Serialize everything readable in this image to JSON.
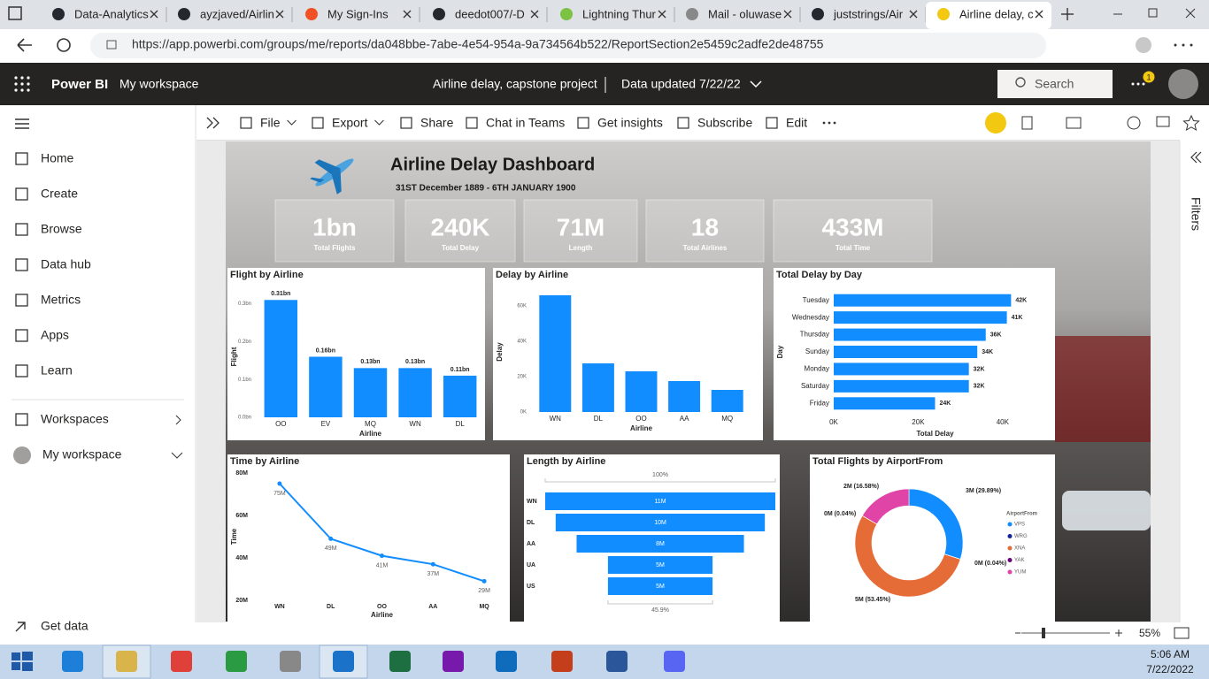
{
  "browser": {
    "tabs": [
      "Data-Analytics",
      "ayzjaved/Airlin",
      "My Sign-Ins",
      "deedot007/-D",
      "Lightning Thur",
      "Mail - oluwase",
      "juststrings/Air",
      "Airline delay, c"
    ],
    "url": "https://app.powerbi.com/groups/me/reports/da048bbe-7abe-4e54-954a-9a734564b522/ReportSection2e5459c2adfe2de48755"
  },
  "app": {
    "brand": "Power BI",
    "workspace": "My workspace",
    "report": "Airline delay, capstone project",
    "updated": "Data updated 7/22/22",
    "search": "Search",
    "notifications": "1"
  },
  "nav": [
    "Home",
    "Create",
    "Browse",
    "Data hub",
    "Metrics",
    "Apps",
    "Learn",
    "Workspaces",
    "My workspace"
  ],
  "get_data": "Get data",
  "toolbar": [
    "File",
    "Export",
    "Share",
    "Chat in Teams",
    "Get insights",
    "Subscribe",
    "Edit"
  ],
  "filters": "Filters",
  "zoom": "55%",
  "taskbar": {
    "time": "5:06 AM",
    "date": "7/22/2022"
  },
  "dashboard": {
    "title": "Airline Delay Dashboard",
    "subtitle": "31ST December 1889 - 6TH JANUARY 1900",
    "kpis": [
      {
        "value": "1bn",
        "label": "Total Flights"
      },
      {
        "value": "240K",
        "label": "Total Delay"
      },
      {
        "value": "71M",
        "label": "Length"
      },
      {
        "value": "18",
        "label": "Total Airlines"
      },
      {
        "value": "433M",
        "label": "Total Time"
      }
    ],
    "charts": [
      {
        "type": "bar",
        "title": "Flight by Airline",
        "x_label": "Airline",
        "y_label": "Flight",
        "categories": [
          "OO",
          "EV",
          "MQ",
          "WN",
          "DL"
        ],
        "values": [
          0.31,
          0.16,
          0.13,
          0.13,
          0.11
        ],
        "value_labels": [
          "0.31bn",
          "0.16bn",
          "0.13bn",
          "0.13bn",
          "0.11bn"
        ],
        "ylim": [
          0,
          0.32
        ],
        "yticks": [
          {
            "value": 0,
            "label": "0.0bn"
          },
          {
            "value": 0.1,
            "label": "0.1bn"
          },
          {
            "value": 0.2,
            "label": "0.2bn"
          },
          {
            "value": 0.3,
            "label": "0.3bn"
          }
        ],
        "color": "#118DFF"
      },
      {
        "type": "bar",
        "title": "Delay by Airline",
        "x_label": "Airline",
        "y_label": "Delay",
        "categories": [
          "WN",
          "DL",
          "OO",
          "AA",
          "MQ"
        ],
        "values": [
          66000,
          27500,
          23000,
          17500,
          12500
        ],
        "ylim": [
          0,
          68000
        ],
        "yticks": [
          {
            "value": 0,
            "label": "0K"
          },
          {
            "value": 20000,
            "label": "20K"
          },
          {
            "value": 40000,
            "label": "40K"
          },
          {
            "value": 60000,
            "label": "60K"
          }
        ],
        "color": "#118DFF"
      },
      {
        "type": "bar",
        "orientation": "horizontal",
        "title": "Total Delay by Day",
        "x_label": "Total Delay",
        "y_label": "Day",
        "categories": [
          "Tuesday",
          "Wednesday",
          "Thursday",
          "Sunday",
          "Monday",
          "Saturday",
          "Friday"
        ],
        "values": [
          42000,
          41000,
          36000,
          34000,
          32000,
          32000,
          24000
        ],
        "value_labels": [
          "42K",
          "41K",
          "36K",
          "34K",
          "32K",
          "32K",
          "24K"
        ],
        "xlim": [
          0,
          48000
        ],
        "xticks": [
          {
            "value": 0,
            "label": "0K"
          },
          {
            "value": 20000,
            "label": "20K"
          },
          {
            "value": 40000,
            "label": "40K"
          }
        ],
        "color": "#118DFF"
      },
      {
        "type": "line",
        "title": "Time by Airline",
        "x_label": "Airline",
        "y_label": "Time",
        "categories": [
          "WN",
          "DL",
          "OO",
          "AA",
          "MQ"
        ],
        "values": [
          75000000,
          49000000,
          41000000,
          37000000,
          29000000
        ],
        "value_labels": [
          "75M",
          "49M",
          "41M",
          "37M",
          "29M"
        ],
        "ylim": [
          20000000,
          80000000
        ],
        "yticks": [
          {
            "value": 20000000,
            "label": "20M"
          },
          {
            "value": 40000000,
            "label": "40M"
          },
          {
            "value": 60000000,
            "label": "60M"
          },
          {
            "value": 80000000,
            "label": "80M"
          }
        ],
        "color": "#118DFF"
      },
      {
        "type": "funnel",
        "title": "Length by Airline",
        "categories": [
          "WN",
          "DL",
          "AA",
          "UA",
          "US"
        ],
        "values": [
          11000000,
          10000000,
          8000000,
          5000000,
          5000000
        ],
        "value_labels": [
          "11M",
          "10M",
          "8M",
          "5M",
          "5M"
        ],
        "top_label": "100%",
        "bottom_label": "45.9%",
        "color": "#118DFF"
      },
      {
        "type": "donut",
        "title": "Total Flights by AirportFrom",
        "legend_title": "AirportFrom",
        "categories": [
          "VPS",
          "WRG",
          "XNA",
          "YAK",
          "YUM"
        ],
        "values": [
          29.89,
          0.04,
          53.45,
          0.04,
          16.58
        ],
        "value_labels": [
          "3M (29.89%)",
          "0M (0.04%)",
          "5M (53.45%)",
          "0M (0.04%)",
          "2M (16.58%)"
        ],
        "colors": [
          "#118DFF",
          "#12239E",
          "#E66C37",
          "#6B007B",
          "#E044A7"
        ]
      }
    ]
  }
}
